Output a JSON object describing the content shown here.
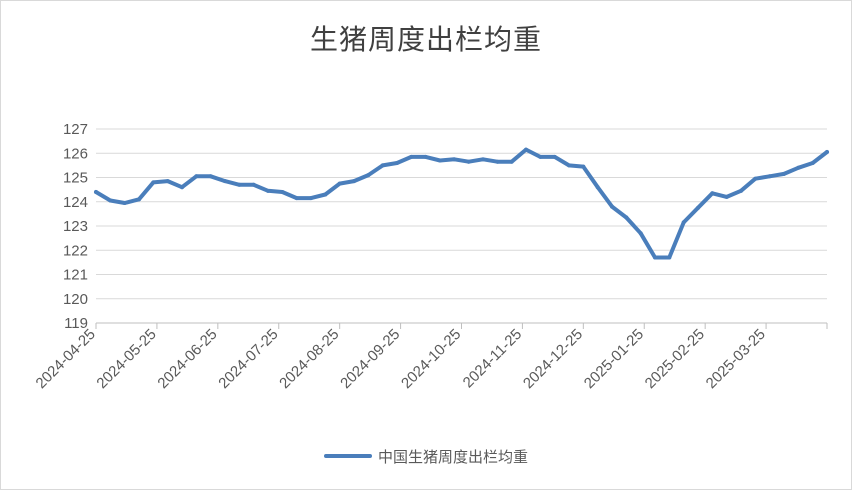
{
  "chart_data": {
    "type": "line",
    "title": "生猪周度出栏均重",
    "ylim": [
      119,
      127
    ],
    "yticks": [
      "127",
      "126",
      "125",
      "124",
      "123",
      "122",
      "121",
      "120",
      "119"
    ],
    "xtick_labels": [
      "2024-04-25",
      "2024-05-25",
      "2024-06-25",
      "2024-07-25",
      "2024-08-25",
      "2024-09-25",
      "2024-10-25",
      "2024-11-25",
      "2024-12-25",
      "2025-01-25",
      "2025-02-25",
      "2025-03-25"
    ],
    "grid": true,
    "legend": "bottom",
    "line_color": "#4a7ebb",
    "series": [
      {
        "name": "中国生猪周度出栏均重",
        "values": [
          124.4,
          124.05,
          123.95,
          124.1,
          124.8,
          124.85,
          124.6,
          125.05,
          125.05,
          124.85,
          124.7,
          124.7,
          124.45,
          124.4,
          124.15,
          124.15,
          124.3,
          124.75,
          124.85,
          125.1,
          125.5,
          125.6,
          125.85,
          125.85,
          125.7,
          125.75,
          125.65,
          125.75,
          125.65,
          125.65,
          126.15,
          125.85,
          125.85,
          125.5,
          125.45,
          124.6,
          123.8,
          123.35,
          122.7,
          121.7,
          121.7,
          123.15,
          123.75,
          124.35,
          124.2,
          124.45,
          124.95,
          125.05,
          125.15,
          125.4,
          125.6,
          126.05
        ]
      }
    ]
  }
}
